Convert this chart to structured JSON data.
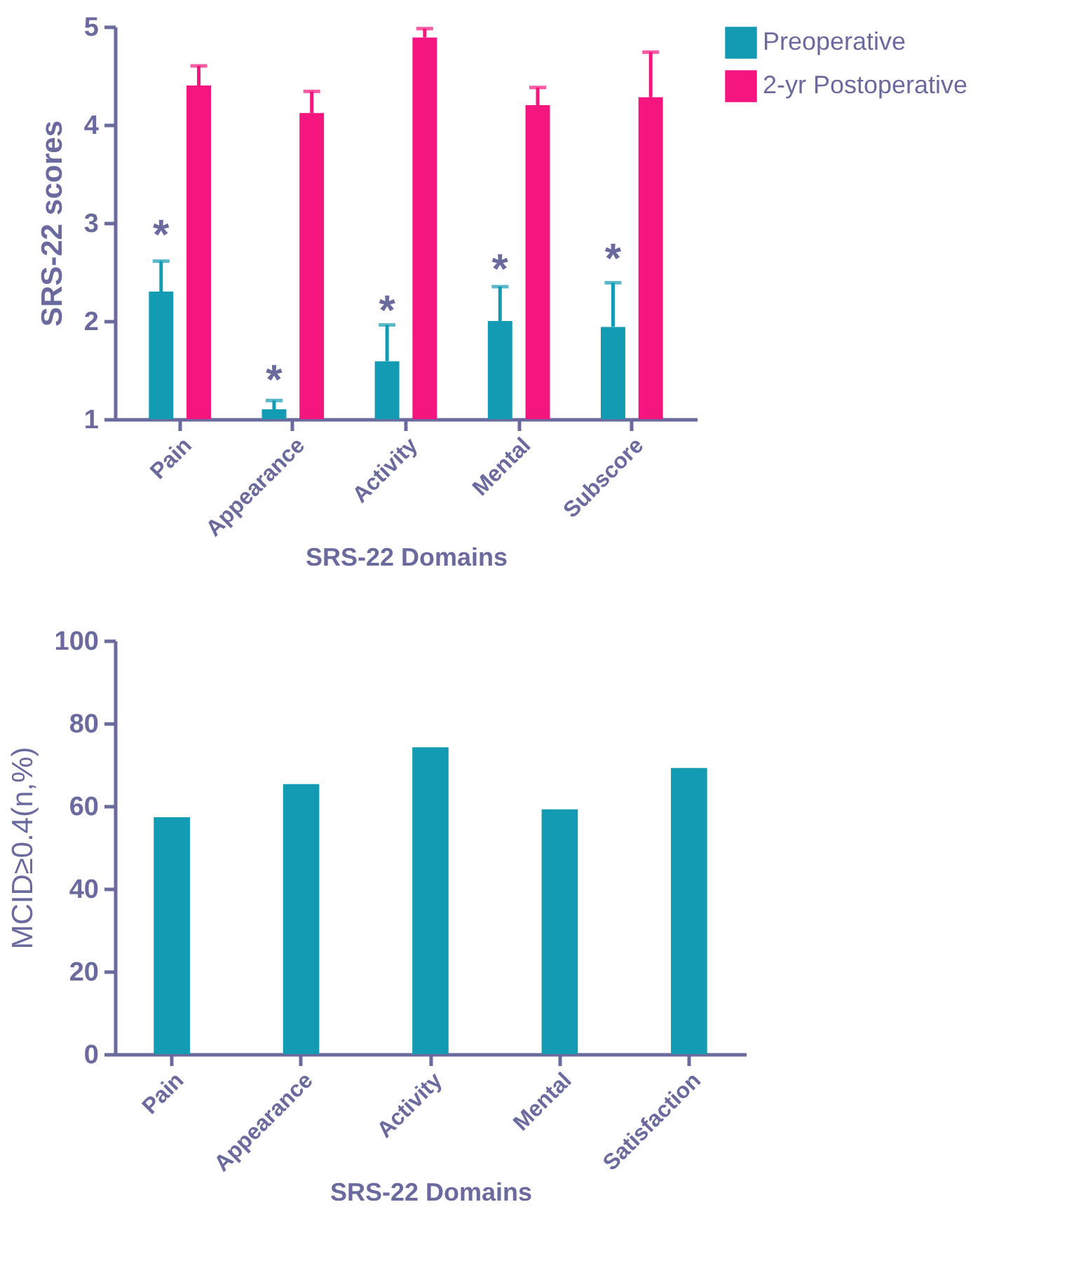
{
  "chart_data": [
    {
      "type": "bar",
      "ylabel": "SRS-22 scores",
      "xlabel": "SRS-22 Domains",
      "categories": [
        "Pain",
        "Appearance",
        "Activity",
        "Mental",
        "Subscore"
      ],
      "series": [
        {
          "name": "Preoperative",
          "color": "#129bb3",
          "values": [
            2.3,
            1.1,
            1.59,
            2.0,
            1.94
          ],
          "errors": [
            0.31,
            0.09,
            0.37,
            0.35,
            0.45
          ]
        },
        {
          "name": "2-yr Postoperative",
          "color": "#f5157f",
          "values": [
            4.4,
            4.12,
            4.89,
            4.2,
            4.28
          ],
          "errors": [
            0.2,
            0.22,
            0.09,
            0.18,
            0.46
          ]
        }
      ],
      "ylim": [
        1,
        5
      ],
      "yticks": [
        1,
        2,
        3,
        4,
        5
      ],
      "grid": false,
      "legend": "top right",
      "annotations": [
        {
          "text": "*",
          "x": "Pain",
          "y": 2.95
        },
        {
          "text": "*",
          "x": "Appearance",
          "y": 1.47
        },
        {
          "text": "*",
          "x": "Activity",
          "y": 2.18
        },
        {
          "text": "*",
          "x": "Mental",
          "y": 2.6
        },
        {
          "text": "*",
          "x": "Subscore",
          "y": 2.71
        }
      ]
    },
    {
      "type": "bar",
      "ylabel": "MCID≥0.4(n,%)",
      "xlabel": "SRS-22 Domains",
      "categories": [
        "Pain",
        "Appearance",
        "Activity",
        "Mental",
        "Satisfaction"
      ],
      "series": [
        {
          "color": "#129bb3",
          "values": [
            57.3,
            65.3,
            74.2,
            59.2,
            69.2
          ]
        }
      ],
      "ylim": [
        0,
        100
      ],
      "yticks": [
        0,
        20,
        40,
        60,
        80,
        100
      ],
      "grid": false,
      "legend": false
    }
  ]
}
